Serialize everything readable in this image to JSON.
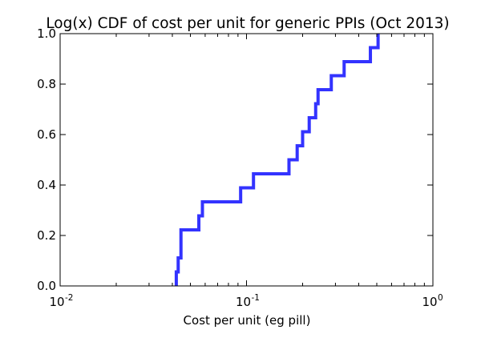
{
  "chart_data": {
    "type": "line",
    "title": "Log(x) CDF of cost per unit for generic PPIs (Oct 2013)",
    "xlabel": "Cost per unit (eg pill)",
    "ylabel": "",
    "x_scale": "log",
    "xlim": [
      0.01,
      1
    ],
    "ylim": [
      0.0,
      1.0
    ],
    "x_tick_base": "10",
    "x_ticks": [
      {
        "value": 0.01,
        "exponent": "-2"
      },
      {
        "value": 0.1,
        "exponent": "-1"
      },
      {
        "value": 1,
        "exponent": "0"
      }
    ],
    "y_ticks": [
      {
        "value": 0.0,
        "label": "0.0"
      },
      {
        "value": 0.2,
        "label": "0.2"
      },
      {
        "value": 0.4,
        "label": "0.4"
      },
      {
        "value": 0.6,
        "label": "0.6"
      },
      {
        "value": 0.8,
        "label": "0.8"
      },
      {
        "value": 1.0,
        "label": "1.0"
      }
    ],
    "grid": false,
    "legend": "none",
    "series": [
      {
        "color": "#3333ff",
        "steps": [
          [
            0.042,
            0.0
          ],
          [
            0.042,
            0.0556
          ],
          [
            0.043,
            0.0556
          ],
          [
            0.043,
            0.1111
          ],
          [
            0.0445,
            0.1111
          ],
          [
            0.0445,
            0.2222
          ],
          [
            0.0555,
            0.2222
          ],
          [
            0.0555,
            0.2778
          ],
          [
            0.058,
            0.2778
          ],
          [
            0.058,
            0.3333
          ],
          [
            0.093,
            0.3333
          ],
          [
            0.093,
            0.3889
          ],
          [
            0.109,
            0.3889
          ],
          [
            0.109,
            0.4444
          ],
          [
            0.169,
            0.4444
          ],
          [
            0.169,
            0.5
          ],
          [
            0.187,
            0.5
          ],
          [
            0.187,
            0.5556
          ],
          [
            0.2,
            0.5556
          ],
          [
            0.2,
            0.6111
          ],
          [
            0.217,
            0.6111
          ],
          [
            0.217,
            0.6667
          ],
          [
            0.235,
            0.6667
          ],
          [
            0.235,
            0.7222
          ],
          [
            0.242,
            0.7222
          ],
          [
            0.242,
            0.7778
          ],
          [
            0.285,
            0.7778
          ],
          [
            0.285,
            0.8333
          ],
          [
            0.334,
            0.8333
          ],
          [
            0.334,
            0.8889
          ],
          [
            0.462,
            0.8889
          ],
          [
            0.462,
            0.9444
          ],
          [
            0.508,
            0.9444
          ],
          [
            0.508,
            1.0
          ]
        ]
      }
    ]
  }
}
